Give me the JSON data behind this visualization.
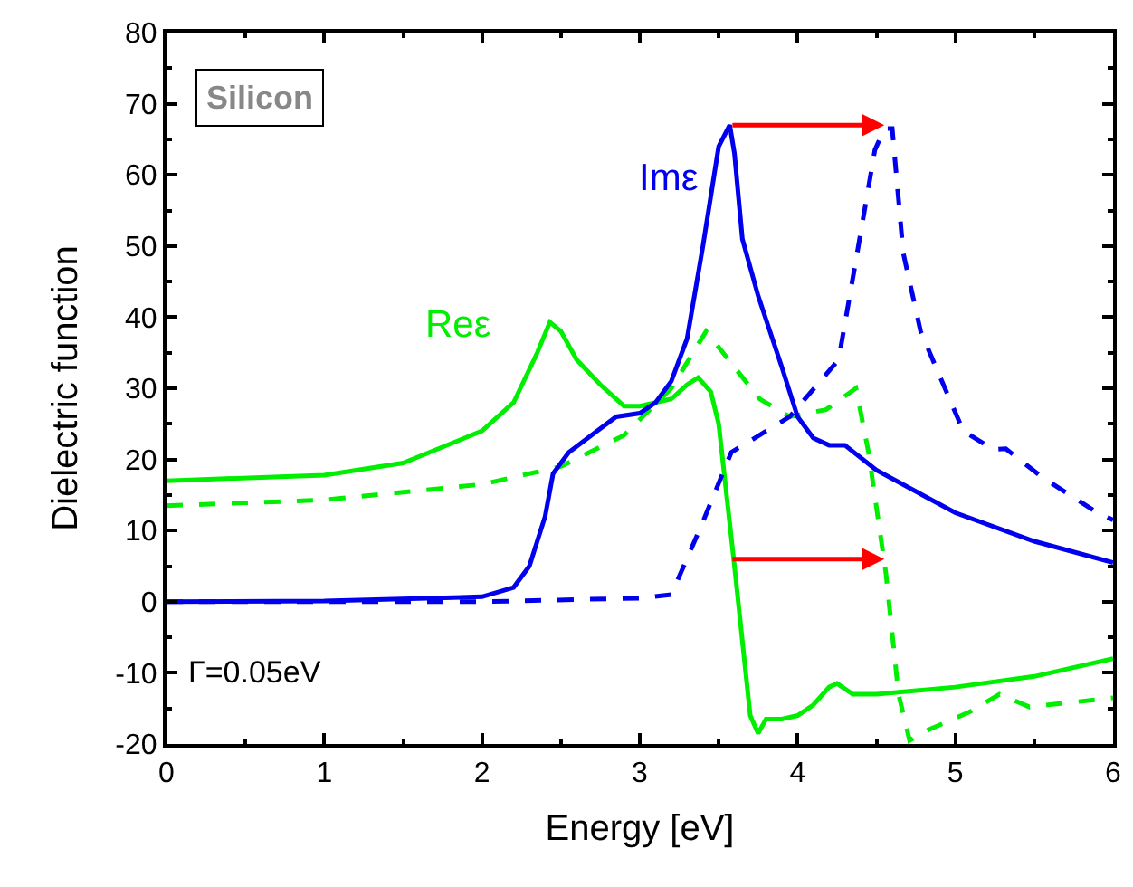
{
  "chart_data": {
    "type": "line",
    "xlabel": "Energy [eV]",
    "ylabel": "Dielectric function",
    "xlim": [
      0,
      6
    ],
    "ylim": [
      -20,
      80
    ],
    "xticks": [
      0,
      1,
      2,
      3,
      4,
      5,
      6
    ],
    "yticks": [
      -20,
      -10,
      0,
      10,
      20,
      30,
      40,
      50,
      60,
      70,
      80
    ],
    "legend": false,
    "marker": "none",
    "annotations": [
      "Silicon",
      "Γ=0.05eV"
    ],
    "series": [
      {
        "name": "Reε",
        "color": "#00ee00",
        "line_style": "solid",
        "x": [
          0,
          1,
          1.5,
          2,
          2.2,
          2.35,
          2.43,
          2.5,
          2.6,
          2.75,
          2.9,
          3.0,
          3.2,
          3.3,
          3.37,
          3.45,
          3.5,
          3.6,
          3.7,
          3.75,
          3.8,
          3.9,
          4.0,
          4.1,
          4.2,
          4.25,
          4.35,
          4.5,
          5.0,
          5.5,
          6.0
        ],
        "values": [
          17,
          17.8,
          19.5,
          24,
          28,
          35,
          39.3,
          38,
          34,
          30.5,
          27.5,
          27.5,
          28.5,
          30.5,
          31.5,
          29.5,
          25,
          5,
          -16,
          -18.5,
          -16.5,
          -16.5,
          -16,
          -14.5,
          -12,
          -11.5,
          -13,
          -13,
          -12,
          -10.5,
          -8
        ]
      },
      {
        "color": "#00ee00",
        "line_style": "dashed",
        "x": [
          0,
          1,
          2,
          2.5,
          2.9,
          3.2,
          3.42,
          3.76,
          3.95,
          4.18,
          4.37,
          4.45,
          4.56,
          4.64,
          4.71,
          4.83,
          5.09,
          5.28,
          5.47,
          6.0
        ],
        "values": [
          13.5,
          14.3,
          16.5,
          19,
          23.4,
          30,
          38,
          28.5,
          26,
          27,
          30,
          21,
          4,
          -13,
          -19.5,
          -18,
          -15.5,
          -13,
          -14.8,
          -13.5
        ]
      },
      {
        "name": "Imε",
        "color": "#0000ee",
        "line_style": "solid",
        "x": [
          0,
          1,
          2,
          2.2,
          2.3,
          2.4,
          2.45,
          2.55,
          2.7,
          2.85,
          3.0,
          3.1,
          3.2,
          3.3,
          3.4,
          3.5,
          3.57,
          3.6,
          3.65,
          3.75,
          3.9,
          4.0,
          4.1,
          4.2,
          4.3,
          4.5,
          5.0,
          5.5,
          6.0
        ],
        "values": [
          0,
          0.1,
          0.7,
          2,
          5,
          12,
          18,
          21,
          23.5,
          26,
          26.5,
          28,
          31,
          37,
          50,
          64,
          67,
          63,
          51,
          43,
          33,
          26,
          23,
          22,
          22,
          18.5,
          12.5,
          8.5,
          5.5
        ]
      },
      {
        "color": "#0000ee",
        "line_style": "dashed",
        "x": [
          0,
          2,
          3.0,
          3.2,
          3.39,
          3.58,
          3.95,
          4.26,
          4.37,
          4.49,
          4.55,
          4.6,
          4.67,
          4.78,
          5.05,
          5.24,
          5.32,
          5.55,
          5.9,
          6.0
        ],
        "values": [
          0,
          0,
          0.5,
          1,
          10.7,
          21,
          26,
          34,
          48,
          63.5,
          66.5,
          66.5,
          49,
          38,
          24,
          21.4,
          21.5,
          17.5,
          12.5,
          11.5
        ]
      }
    ]
  }
}
